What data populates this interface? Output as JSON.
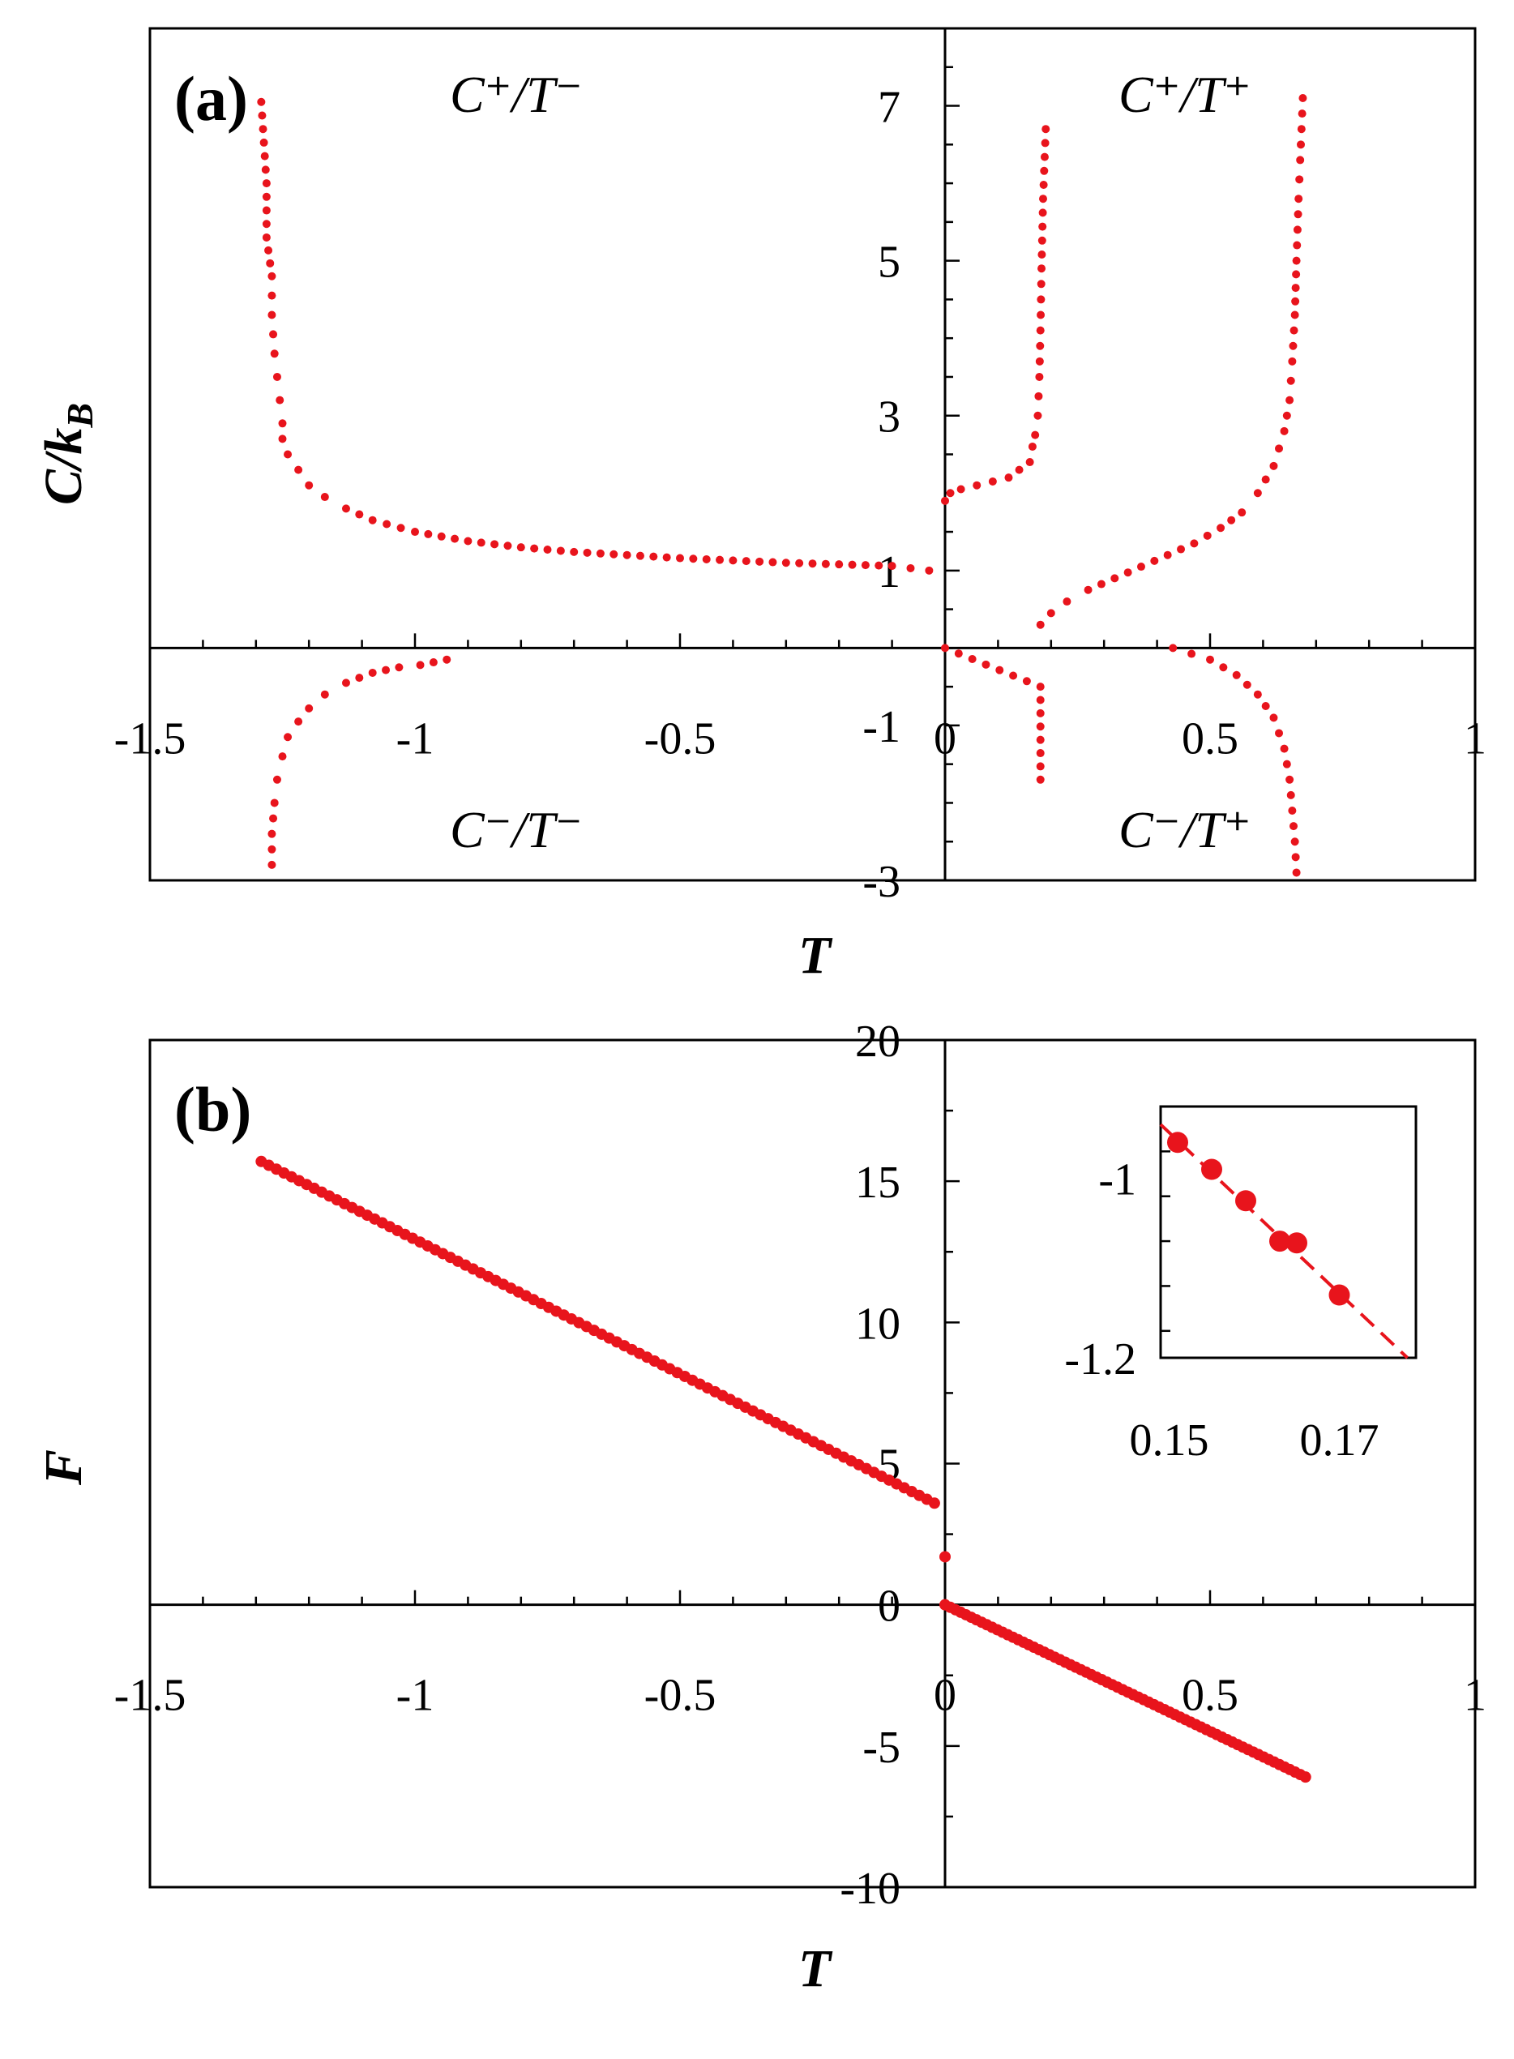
{
  "chart_data": [
    {
      "type": "scatter",
      "panel_label": "(a)",
      "xlabel": "T",
      "ylabel": "C/k_B",
      "ylabel_main": "C/k",
      "ylabel_sub": "B",
      "xlim": [
        -1.5,
        1
      ],
      "ylim": [
        -3,
        8
      ],
      "x_ticks": [
        -1.5,
        -1,
        -0.5,
        0,
        0.5,
        1
      ],
      "x_tick_labels": [
        "-1.5",
        "-1",
        "-0.5",
        "0",
        "0.5",
        "1"
      ],
      "y_ticks": [
        -3,
        -1,
        1,
        3,
        5,
        7
      ],
      "y_tick_labels": [
        "-3",
        "-1",
        "1",
        "3",
        "5",
        "7"
      ],
      "region_labels": [
        {
          "text": "C⁺/T⁻",
          "position": "top-left"
        },
        {
          "text": "C⁺/T⁺",
          "position": "top-right"
        },
        {
          "text": "C⁻/T⁻",
          "position": "bottom-left"
        },
        {
          "text": "C⁻/T⁺",
          "position": "bottom-right"
        }
      ],
      "color": "#e8141c",
      "series": [
        {
          "name": "C+ T- main branch",
          "x": [
            -1.29,
            -1.28,
            -1.28,
            -1.27,
            -1.27,
            -1.265,
            -1.26,
            -1.255,
            -1.25,
            -1.25,
            -1.24,
            -1.22,
            -1.2,
            -1.17,
            -1.13,
            -1.08,
            -1.0,
            -0.9,
            -0.8,
            -0.7,
            -0.6,
            -0.5,
            -0.4,
            -0.3,
            -0.2,
            -0.1,
            -0.03
          ],
          "y": [
            7.05,
            6.0,
            5.3,
            4.8,
            4.3,
            3.8,
            3.5,
            3.2,
            2.9,
            2.7,
            2.5,
            2.3,
            2.1,
            1.95,
            1.8,
            1.65,
            1.5,
            1.38,
            1.3,
            1.24,
            1.2,
            1.16,
            1.13,
            1.1,
            1.08,
            1.06,
            1.0
          ]
        },
        {
          "name": "C- T- branch",
          "x": [
            -1.27,
            -1.27,
            -1.265,
            -1.26,
            -1.25,
            -1.24,
            -1.22,
            -1.2,
            -1.17,
            -1.13,
            -1.08,
            -1.03,
            -0.99,
            -0.94
          ],
          "y": [
            -2.8,
            -2.4,
            -2.0,
            -1.7,
            -1.4,
            -1.15,
            -0.95,
            -0.78,
            -0.6,
            -0.45,
            -0.32,
            -0.25,
            -0.22,
            -0.15
          ]
        },
        {
          "name": "C+ T+ low branch",
          "x": [
            0.0,
            0.01,
            0.03,
            0.06,
            0.09,
            0.12,
            0.14,
            0.16,
            0.165,
            0.17,
            0.175,
            0.178,
            0.18,
            0.182,
            0.185,
            0.19
          ],
          "y": [
            1.9,
            2.0,
            2.05,
            2.1,
            2.15,
            2.2,
            2.3,
            2.4,
            2.6,
            2.75,
            3.0,
            3.5,
            4.1,
            4.9,
            5.8,
            6.7
          ]
        },
        {
          "name": "C- T+ low branch",
          "x": [
            0.0,
            0.18,
            0.18
          ],
          "y": [
            0.0,
            -0.5,
            -1.7
          ]
        },
        {
          "name": "C+ T+ high branch",
          "x": [
            0.18,
            0.2,
            0.23,
            0.27,
            0.32,
            0.37,
            0.42,
            0.47,
            0.52,
            0.56,
            0.59,
            0.62,
            0.64,
            0.65,
            0.655,
            0.66,
            0.663,
            0.667,
            0.67,
            0.675
          ],
          "y": [
            0.3,
            0.45,
            0.6,
            0.75,
            0.9,
            1.05,
            1.2,
            1.35,
            1.55,
            1.75,
            2.0,
            2.35,
            2.8,
            3.2,
            3.7,
            4.3,
            5.0,
            5.8,
            6.3,
            7.1
          ]
        },
        {
          "name": "C- T+ high branch",
          "x": [
            0.43,
            0.5,
            0.55,
            0.59,
            0.62,
            0.64,
            0.65,
            0.655,
            0.66,
            0.663
          ],
          "y": [
            0.0,
            -0.15,
            -0.35,
            -0.6,
            -0.9,
            -1.3,
            -1.7,
            -2.1,
            -2.5,
            -2.9
          ]
        }
      ]
    },
    {
      "type": "scatter",
      "panel_label": "(b)",
      "xlabel": "T",
      "ylabel": "F",
      "xlim": [
        -1.5,
        1
      ],
      "ylim": [
        -10,
        20
      ],
      "x_ticks": [
        -1.5,
        -1,
        -0.5,
        0,
        0.5,
        1
      ],
      "x_tick_labels": [
        "-1.5",
        "-1",
        "-0.5",
        "0",
        "0.5",
        "1"
      ],
      "y_ticks": [
        -10,
        -5,
        0,
        5,
        10,
        15,
        20
      ],
      "y_tick_labels": [
        "-10",
        "-5",
        "0",
        "5",
        "10",
        "15",
        "20"
      ],
      "color": "#e8141c",
      "series": [
        {
          "name": "F for T<0",
          "x_start": -1.29,
          "x_end": -0.02,
          "y_start": 15.7,
          "y_end": 3.6,
          "n_points": 90
        },
        {
          "name": "isolated point",
          "x": [
            0.0
          ],
          "y": [
            1.7
          ]
        },
        {
          "name": "F for T>0",
          "x_start": 0.0,
          "x_end": 0.68,
          "y_start": 0.0,
          "y_end": -6.1,
          "n_points": 70
        }
      ],
      "inset": {
        "xlim": [
          0.149,
          0.179
        ],
        "ylim": [
          -1.2,
          -0.92
        ],
        "x_tick_labels": [
          "0.15",
          "0.17"
        ],
        "x_ticks": [
          0.15,
          0.17
        ],
        "y_tick_labels": [
          "-1",
          "-1.2"
        ],
        "y_ticks": [
          -1.0,
          -1.2
        ],
        "points": {
          "x": [
            0.151,
            0.155,
            0.159,
            0.163,
            0.165,
            0.17
          ],
          "y": [
            -0.96,
            -0.99,
            -1.025,
            -1.07,
            -1.072,
            -1.13
          ]
        },
        "fit_line": {
          "x": [
            0.149,
            0.178
          ],
          "y": [
            -0.94,
            -1.2
          ]
        }
      }
    }
  ]
}
